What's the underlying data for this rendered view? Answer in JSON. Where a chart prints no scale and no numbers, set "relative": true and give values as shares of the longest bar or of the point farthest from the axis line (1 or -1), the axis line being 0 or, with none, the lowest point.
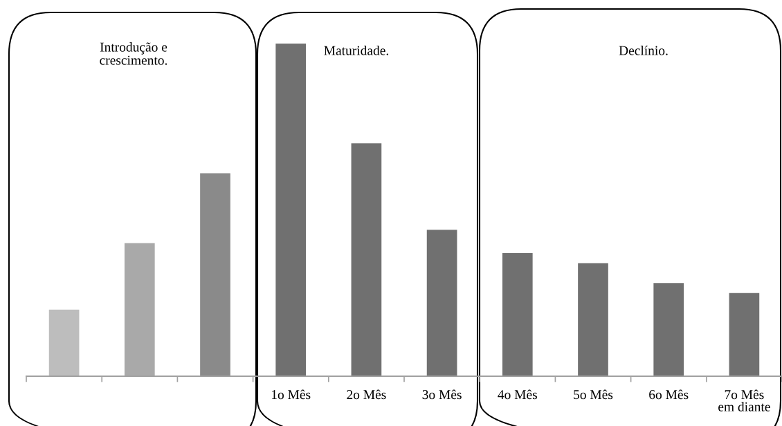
{
  "chart_data": {
    "type": "bar",
    "relative": true,
    "categories": [
      null,
      null,
      null,
      "1o Mês",
      "2o Mês",
      "3o Mês",
      "4o Mês",
      "5o Mês",
      "6o Mês",
      "7o Mês\nem diante"
    ],
    "values": [
      0.2,
      0.4,
      0.61,
      1,
      0.7,
      0.44,
      0.37,
      0.34,
      0.28,
      0.25
    ],
    "colors": [
      "#bdbdbd",
      "#a9a9a9",
      "#8a8a8a",
      "#707070",
      "#707070",
      "#707070",
      "#707070",
      "#707070",
      "#707070",
      "#707070"
    ],
    "annotations": [
      "Introdução e\ncrescimento.",
      "Maturidade.",
      "Declínio."
    ]
  }
}
